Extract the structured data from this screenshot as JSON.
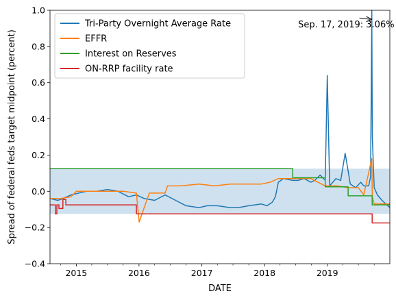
{
  "chart_data": {
    "type": "line",
    "xlabel": "DATE",
    "ylabel": "Spread of federal feds target midpoint (percent)",
    "xlim": [
      "2014-08-01",
      "2019-12-31"
    ],
    "ylim": [
      -0.4,
      1.0
    ],
    "yticks": [
      -0.4,
      -0.2,
      0.0,
      0.2,
      0.4,
      0.6,
      0.8,
      1.0
    ],
    "ytick_labels": [
      "−0.4",
      "−0.2",
      "0.0",
      "0.2",
      "0.4",
      "0.6",
      "0.8",
      "1.0"
    ],
    "xticks": [
      "2015-01-01",
      "2016-01-01",
      "2017-01-01",
      "2018-01-01",
      "2019-01-01"
    ],
    "xtick_labels": [
      "2015",
      "2016",
      "2017",
      "2018",
      "2019"
    ],
    "legend_position": "top-left",
    "grid": false,
    "shaded_band": {
      "y0": -0.125,
      "y1": 0.125,
      "color": "#cfe1ef"
    },
    "annotation": {
      "text": "Sep. 17, 2019: 3.06%",
      "point": {
        "x": "2019-09-17",
        "y": 0.95
      },
      "text_anchor": {
        "x": "2018-07-15",
        "y": 0.92
      }
    },
    "series": [
      {
        "name": "Tri-Party Overnight Average Rate",
        "color": "#1f77b4",
        "x": [
          "2014-08-01",
          "2014-09-15",
          "2014-10-15",
          "2014-12-01",
          "2015-01-15",
          "2015-03-01",
          "2015-05-01",
          "2015-07-01",
          "2015-09-01",
          "2015-11-01",
          "2015-12-17",
          "2016-02-01",
          "2016-04-01",
          "2016-06-01",
          "2016-08-01",
          "2016-10-01",
          "2016-12-15",
          "2017-02-01",
          "2017-04-01",
          "2017-06-15",
          "2017-08-01",
          "2017-10-01",
          "2017-12-14",
          "2018-01-15",
          "2018-02-15",
          "2018-03-05",
          "2018-03-22",
          "2018-04-20",
          "2018-06-14",
          "2018-07-15",
          "2018-08-20",
          "2018-09-27",
          "2018-10-20",
          "2018-11-20",
          "2018-12-20",
          "2019-01-01",
          "2019-01-15",
          "2019-02-20",
          "2019-03-20",
          "2019-04-15",
          "2019-05-15",
          "2019-06-15",
          "2019-07-15",
          "2019-08-01",
          "2019-08-30",
          "2019-09-10",
          "2019-09-17",
          "2019-09-20",
          "2019-10-01",
          "2019-10-20",
          "2019-11-15",
          "2019-12-31"
        ],
        "values": [
          -0.04,
          -0.05,
          -0.04,
          -0.02,
          -0.01,
          0.0,
          0.0,
          0.01,
          0.0,
          -0.03,
          -0.02,
          -0.04,
          -0.05,
          -0.02,
          -0.05,
          -0.08,
          -0.09,
          -0.08,
          -0.08,
          -0.09,
          -0.09,
          -0.08,
          -0.07,
          -0.08,
          -0.06,
          -0.03,
          0.05,
          0.07,
          0.06,
          0.06,
          0.07,
          0.05,
          0.06,
          0.09,
          0.06,
          0.64,
          0.03,
          0.07,
          0.06,
          0.21,
          0.04,
          0.02,
          0.05,
          0.03,
          0.03,
          0.08,
          1.0,
          0.3,
          0.02,
          -0.02,
          -0.05,
          -0.09
        ]
      },
      {
        "name": "EFFR",
        "color": "#ff7f0e",
        "x": [
          "2014-08-01",
          "2014-10-01",
          "2014-12-01",
          "2015-01-01",
          "2015-04-01",
          "2015-07-01",
          "2015-10-01",
          "2015-12-17",
          "2016-01-02",
          "2016-03-01",
          "2016-06-01",
          "2016-06-15",
          "2016-09-01",
          "2016-12-15",
          "2017-03-16",
          "2017-06-15",
          "2017-09-01",
          "2017-12-14",
          "2018-02-01",
          "2018-03-22",
          "2018-06-14",
          "2018-09-27",
          "2018-12-20",
          "2019-03-01",
          "2019-05-01",
          "2019-07-01",
          "2019-08-01",
          "2019-09-17",
          "2019-09-20",
          "2019-10-01",
          "2019-11-01",
          "2019-12-31"
        ],
        "values": [
          -0.04,
          -0.04,
          -0.03,
          0.0,
          0.0,
          0.0,
          0.0,
          -0.01,
          -0.17,
          -0.01,
          -0.01,
          0.03,
          0.03,
          0.04,
          0.03,
          0.04,
          0.04,
          0.04,
          0.05,
          0.07,
          0.07,
          0.07,
          0.03,
          0.03,
          0.02,
          0.02,
          -0.02,
          0.18,
          -0.03,
          -0.07,
          -0.07,
          -0.07
        ]
      },
      {
        "name": "Interest on Reserves",
        "color": "#2ca02c",
        "x": [
          "2014-08-01",
          "2018-06-14",
          "2018-06-14",
          "2018-12-20",
          "2018-12-20",
          "2019-05-02",
          "2019-05-02",
          "2019-09-19",
          "2019-09-19",
          "2019-12-31"
        ],
        "values": [
          0.125,
          0.125,
          0.075,
          0.075,
          0.025,
          0.025,
          -0.025,
          -0.025,
          -0.075,
          -0.075
        ]
      },
      {
        "name": "ON-RRP facility rate",
        "color": "#d62728",
        "x": [
          "2014-08-01",
          "2014-09-01",
          "2014-09-01",
          "2014-09-10",
          "2014-09-10",
          "2014-09-22",
          "2014-09-22",
          "2014-10-15",
          "2014-10-15",
          "2014-11-01",
          "2014-11-01",
          "2015-12-17",
          "2015-12-17",
          "2019-09-19",
          "2019-09-19",
          "2019-12-31"
        ],
        "values": [
          -0.075,
          -0.075,
          -0.125,
          -0.125,
          -0.075,
          -0.075,
          -0.095,
          -0.095,
          -0.045,
          -0.045,
          -0.075,
          -0.075,
          -0.125,
          -0.125,
          -0.175,
          -0.175
        ]
      }
    ]
  }
}
